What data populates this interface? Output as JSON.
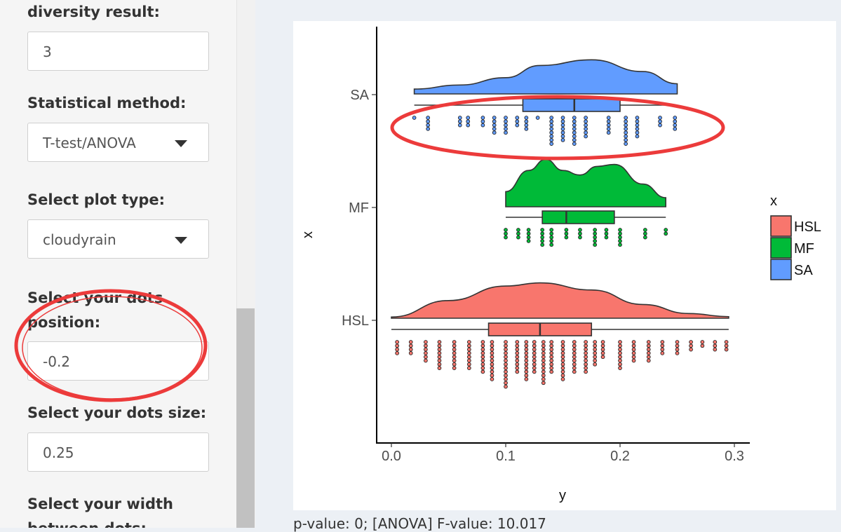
{
  "sidebar": {
    "diversity_label": "diversity result:",
    "diversity_value": "3",
    "stat_method_label": "Statistical method:",
    "stat_method_value": "T-test/ANOVA",
    "plot_type_label": "Select plot type:",
    "plot_type_value": "cloudyrain",
    "dots_position_label_1": "Select your dots",
    "dots_position_label_2": "position:",
    "dots_position_value": "-0.2",
    "dots_size_label": "Select your dots size:",
    "dots_size_value": "0.25",
    "width_label_1": "Select your width",
    "width_label_2": "between dots:"
  },
  "status_text": "p-value: 0; [ANOVA] F-value: 10.017",
  "chart_data": {
    "type": "raincloud",
    "xlabel": "y",
    "ylabel": "x",
    "xlim": [
      0.0,
      0.3
    ],
    "x_ticks": [
      "0.0",
      "0.1",
      "0.2",
      "0.3"
    ],
    "categories": [
      "HSL",
      "MF",
      "SA"
    ],
    "legend_title": "x",
    "legend": [
      "HSL",
      "MF",
      "SA"
    ],
    "legend_position": "right",
    "colors": {
      "HSL": "#f8766d",
      "MF": "#00ba38",
      "SA": "#619cff"
    },
    "series": [
      {
        "name": "HSL",
        "min": 0.0,
        "q1": 0.085,
        "median": 0.13,
        "q3": 0.175,
        "max": 0.295,
        "density": [
          [
            0.0,
            0.03
          ],
          [
            0.05,
            0.45
          ],
          [
            0.1,
            0.82
          ],
          [
            0.13,
            0.9
          ],
          [
            0.175,
            0.72
          ],
          [
            0.22,
            0.35
          ],
          [
            0.26,
            0.12
          ],
          [
            0.295,
            0.04
          ]
        ],
        "dots": [
          [
            0.005,
            4
          ],
          [
            0.017,
            4
          ],
          [
            0.03,
            6
          ],
          [
            0.042,
            8
          ],
          [
            0.055,
            8
          ],
          [
            0.068,
            8
          ],
          [
            0.08,
            9
          ],
          [
            0.088,
            11
          ],
          [
            0.1,
            13
          ],
          [
            0.11,
            9
          ],
          [
            0.118,
            11
          ],
          [
            0.125,
            9
          ],
          [
            0.133,
            12
          ],
          [
            0.14,
            9
          ],
          [
            0.15,
            11
          ],
          [
            0.16,
            9
          ],
          [
            0.17,
            9
          ],
          [
            0.178,
            7
          ],
          [
            0.185,
            5
          ],
          [
            0.2,
            8
          ],
          [
            0.212,
            6
          ],
          [
            0.225,
            6
          ],
          [
            0.237,
            4
          ],
          [
            0.25,
            4
          ],
          [
            0.262,
            3
          ],
          [
            0.272,
            2
          ],
          [
            0.283,
            3
          ],
          [
            0.293,
            3
          ]
        ]
      },
      {
        "name": "MF",
        "min": 0.1,
        "q1": 0.132,
        "median": 0.153,
        "q3": 0.195,
        "max": 0.24,
        "density": [
          [
            0.1,
            0.3
          ],
          [
            0.12,
            0.72
          ],
          [
            0.135,
            0.94
          ],
          [
            0.15,
            0.72
          ],
          [
            0.165,
            0.63
          ],
          [
            0.18,
            0.8
          ],
          [
            0.195,
            0.84
          ],
          [
            0.22,
            0.45
          ],
          [
            0.24,
            0.18
          ]
        ],
        "dots": [
          [
            0.1,
            3
          ],
          [
            0.111,
            3
          ],
          [
            0.12,
            4
          ],
          [
            0.132,
            5
          ],
          [
            0.14,
            5
          ],
          [
            0.153,
            3
          ],
          [
            0.165,
            3
          ],
          [
            0.178,
            5
          ],
          [
            0.188,
            3
          ],
          [
            0.2,
            5
          ],
          [
            0.222,
            3
          ],
          [
            0.24,
            2
          ]
        ]
      },
      {
        "name": "SA",
        "min": 0.02,
        "q1": 0.115,
        "median": 0.16,
        "q3": 0.2,
        "max": 0.25,
        "density": [
          [
            0.02,
            0.12
          ],
          [
            0.06,
            0.22
          ],
          [
            0.1,
            0.4
          ],
          [
            0.13,
            0.7
          ],
          [
            0.175,
            0.84
          ],
          [
            0.22,
            0.55
          ],
          [
            0.25,
            0.25
          ]
        ],
        "dots": [
          [
            0.02,
            1
          ],
          [
            0.032,
            4
          ],
          [
            0.06,
            3
          ],
          [
            0.067,
            3
          ],
          [
            0.08,
            3
          ],
          [
            0.09,
            5
          ],
          [
            0.1,
            5
          ],
          [
            0.11,
            3
          ],
          [
            0.118,
            4
          ],
          [
            0.128,
            1
          ],
          [
            0.14,
            8
          ],
          [
            0.15,
            7
          ],
          [
            0.16,
            8
          ],
          [
            0.17,
            6
          ],
          [
            0.19,
            5
          ],
          [
            0.205,
            8
          ],
          [
            0.215,
            6
          ],
          [
            0.235,
            3
          ],
          [
            0.248,
            4
          ]
        ]
      }
    ]
  }
}
